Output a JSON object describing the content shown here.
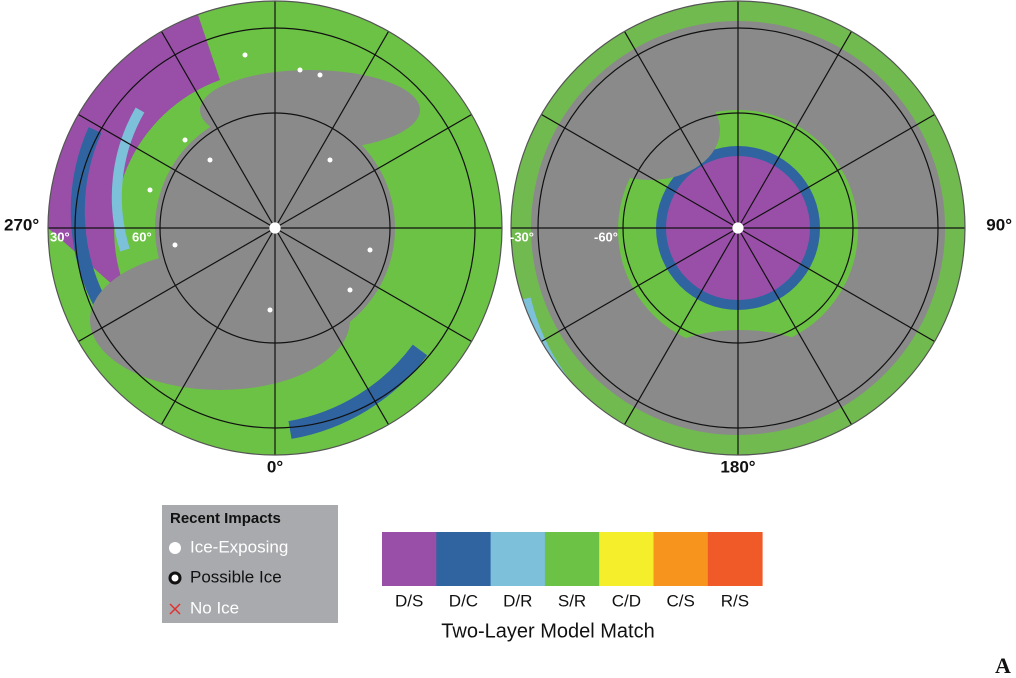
{
  "map": {
    "hemispheres": [
      {
        "labels": {
          "left": "270°",
          "bottom": "0°",
          "ring_outer": "30°",
          "ring_inner": "60°"
        }
      },
      {
        "labels": {
          "right": "90°",
          "bottom": "180°",
          "ring_outer": "-30°",
          "ring_inner": "-60°"
        }
      }
    ],
    "impact_legend": {
      "title": "Recent Impacts",
      "items": [
        "Ice-Exposing",
        "Possible Ice",
        "No Ice"
      ]
    },
    "model_match": {
      "title": "Two-Layer Model Match",
      "classes": [
        {
          "label": "D/S",
          "color": "#994fa8"
        },
        {
          "label": "D/C",
          "color": "#2f64a1"
        },
        {
          "label": "D/R",
          "color": "#7cc0d9"
        },
        {
          "label": "S/R",
          "color": "#6cc245"
        },
        {
          "label": "C/D",
          "color": "#f4ee2b"
        },
        {
          "label": "C/S",
          "color": "#f7941e"
        },
        {
          "label": "R/S",
          "color": "#f05a29"
        }
      ]
    },
    "panel_label": "A"
  }
}
